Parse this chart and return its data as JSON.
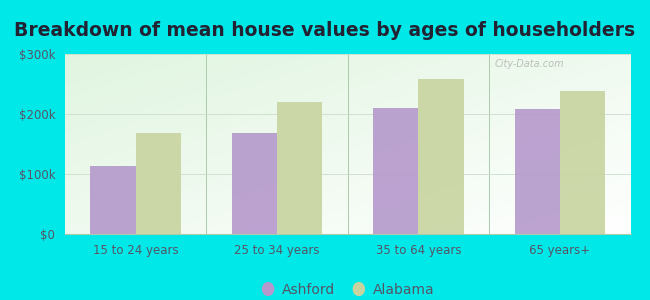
{
  "title": "Breakdown of mean house values by ages of householders",
  "categories": [
    "15 to 24 years",
    "25 to 34 years",
    "35 to 64 years",
    "65 years+"
  ],
  "ashford_values": [
    113000,
    168000,
    210000,
    208000
  ],
  "alabama_values": [
    168000,
    220000,
    258000,
    238000
  ],
  "ashford_color": "#b599cc",
  "alabama_color": "#c8d4a0",
  "ylim": [
    0,
    300000
  ],
  "yticks": [
    0,
    100000,
    200000,
    300000
  ],
  "ytick_labels": [
    "$0",
    "$100k",
    "$200k",
    "$300k"
  ],
  "background_color": "#00e8e8",
  "legend_labels": [
    "Ashford",
    "Alabama"
  ],
  "bar_width": 0.32,
  "title_fontsize": 13.5,
  "tick_fontsize": 8.5,
  "tick_color": "#555566",
  "legend_fontsize": 10,
  "watermark": "City-Data.com"
}
